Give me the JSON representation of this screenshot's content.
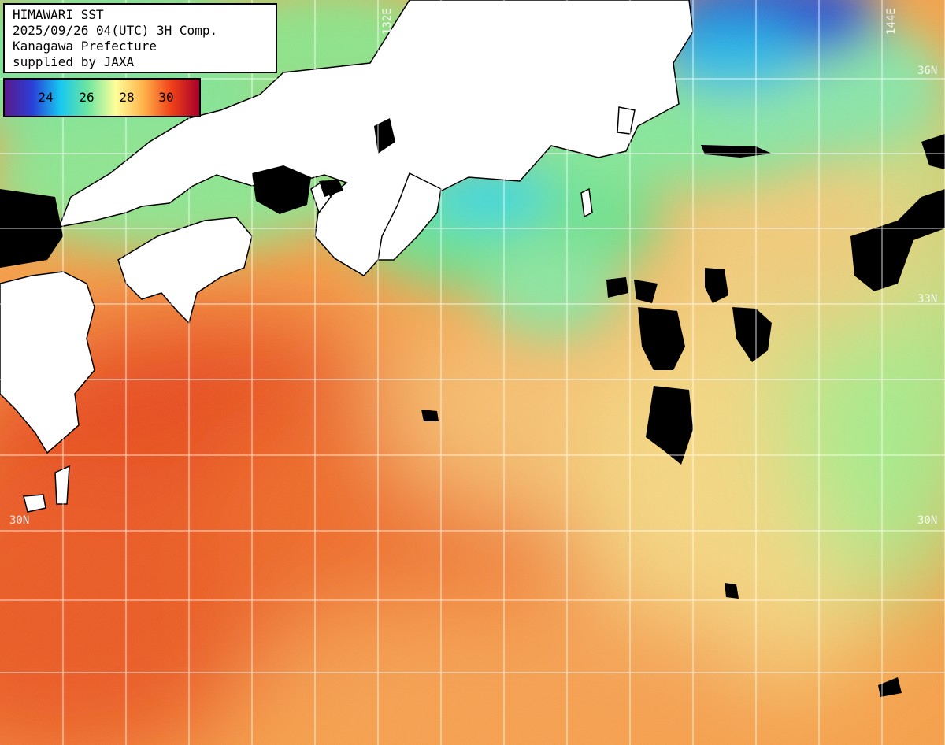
{
  "title_box": {
    "line1": "HIMAWARI SST",
    "line2": "2025/09/26 04(UTC) 3H Comp.",
    "line3": "Kanagawa Prefecture",
    "line4": "supplied by JAXA"
  },
  "legend": {
    "ticks": [
      "24",
      "26",
      "28",
      "30"
    ],
    "stops": [
      "#5a1a8a",
      "#2a3fd8",
      "#16c8f0",
      "#6fe6a0",
      "#fffe9a",
      "#ffb24a",
      "#f04018",
      "#a8002a"
    ]
  },
  "grid_labels": {
    "lon_132": "132E",
    "lon_144": "144E",
    "lat_36_right": "36N",
    "lat_33_right": "33N",
    "lat_30_left": "30N",
    "lat_30_right": "30N"
  },
  "colors": {
    "land": "#ffffff",
    "cloud": "#000000",
    "grid": "#ffffff",
    "cool_water": "#7fe59a",
    "cold_water": "#2a4fd0",
    "warm_water": "#ff8a3a",
    "hot_water": "#e0301a"
  }
}
